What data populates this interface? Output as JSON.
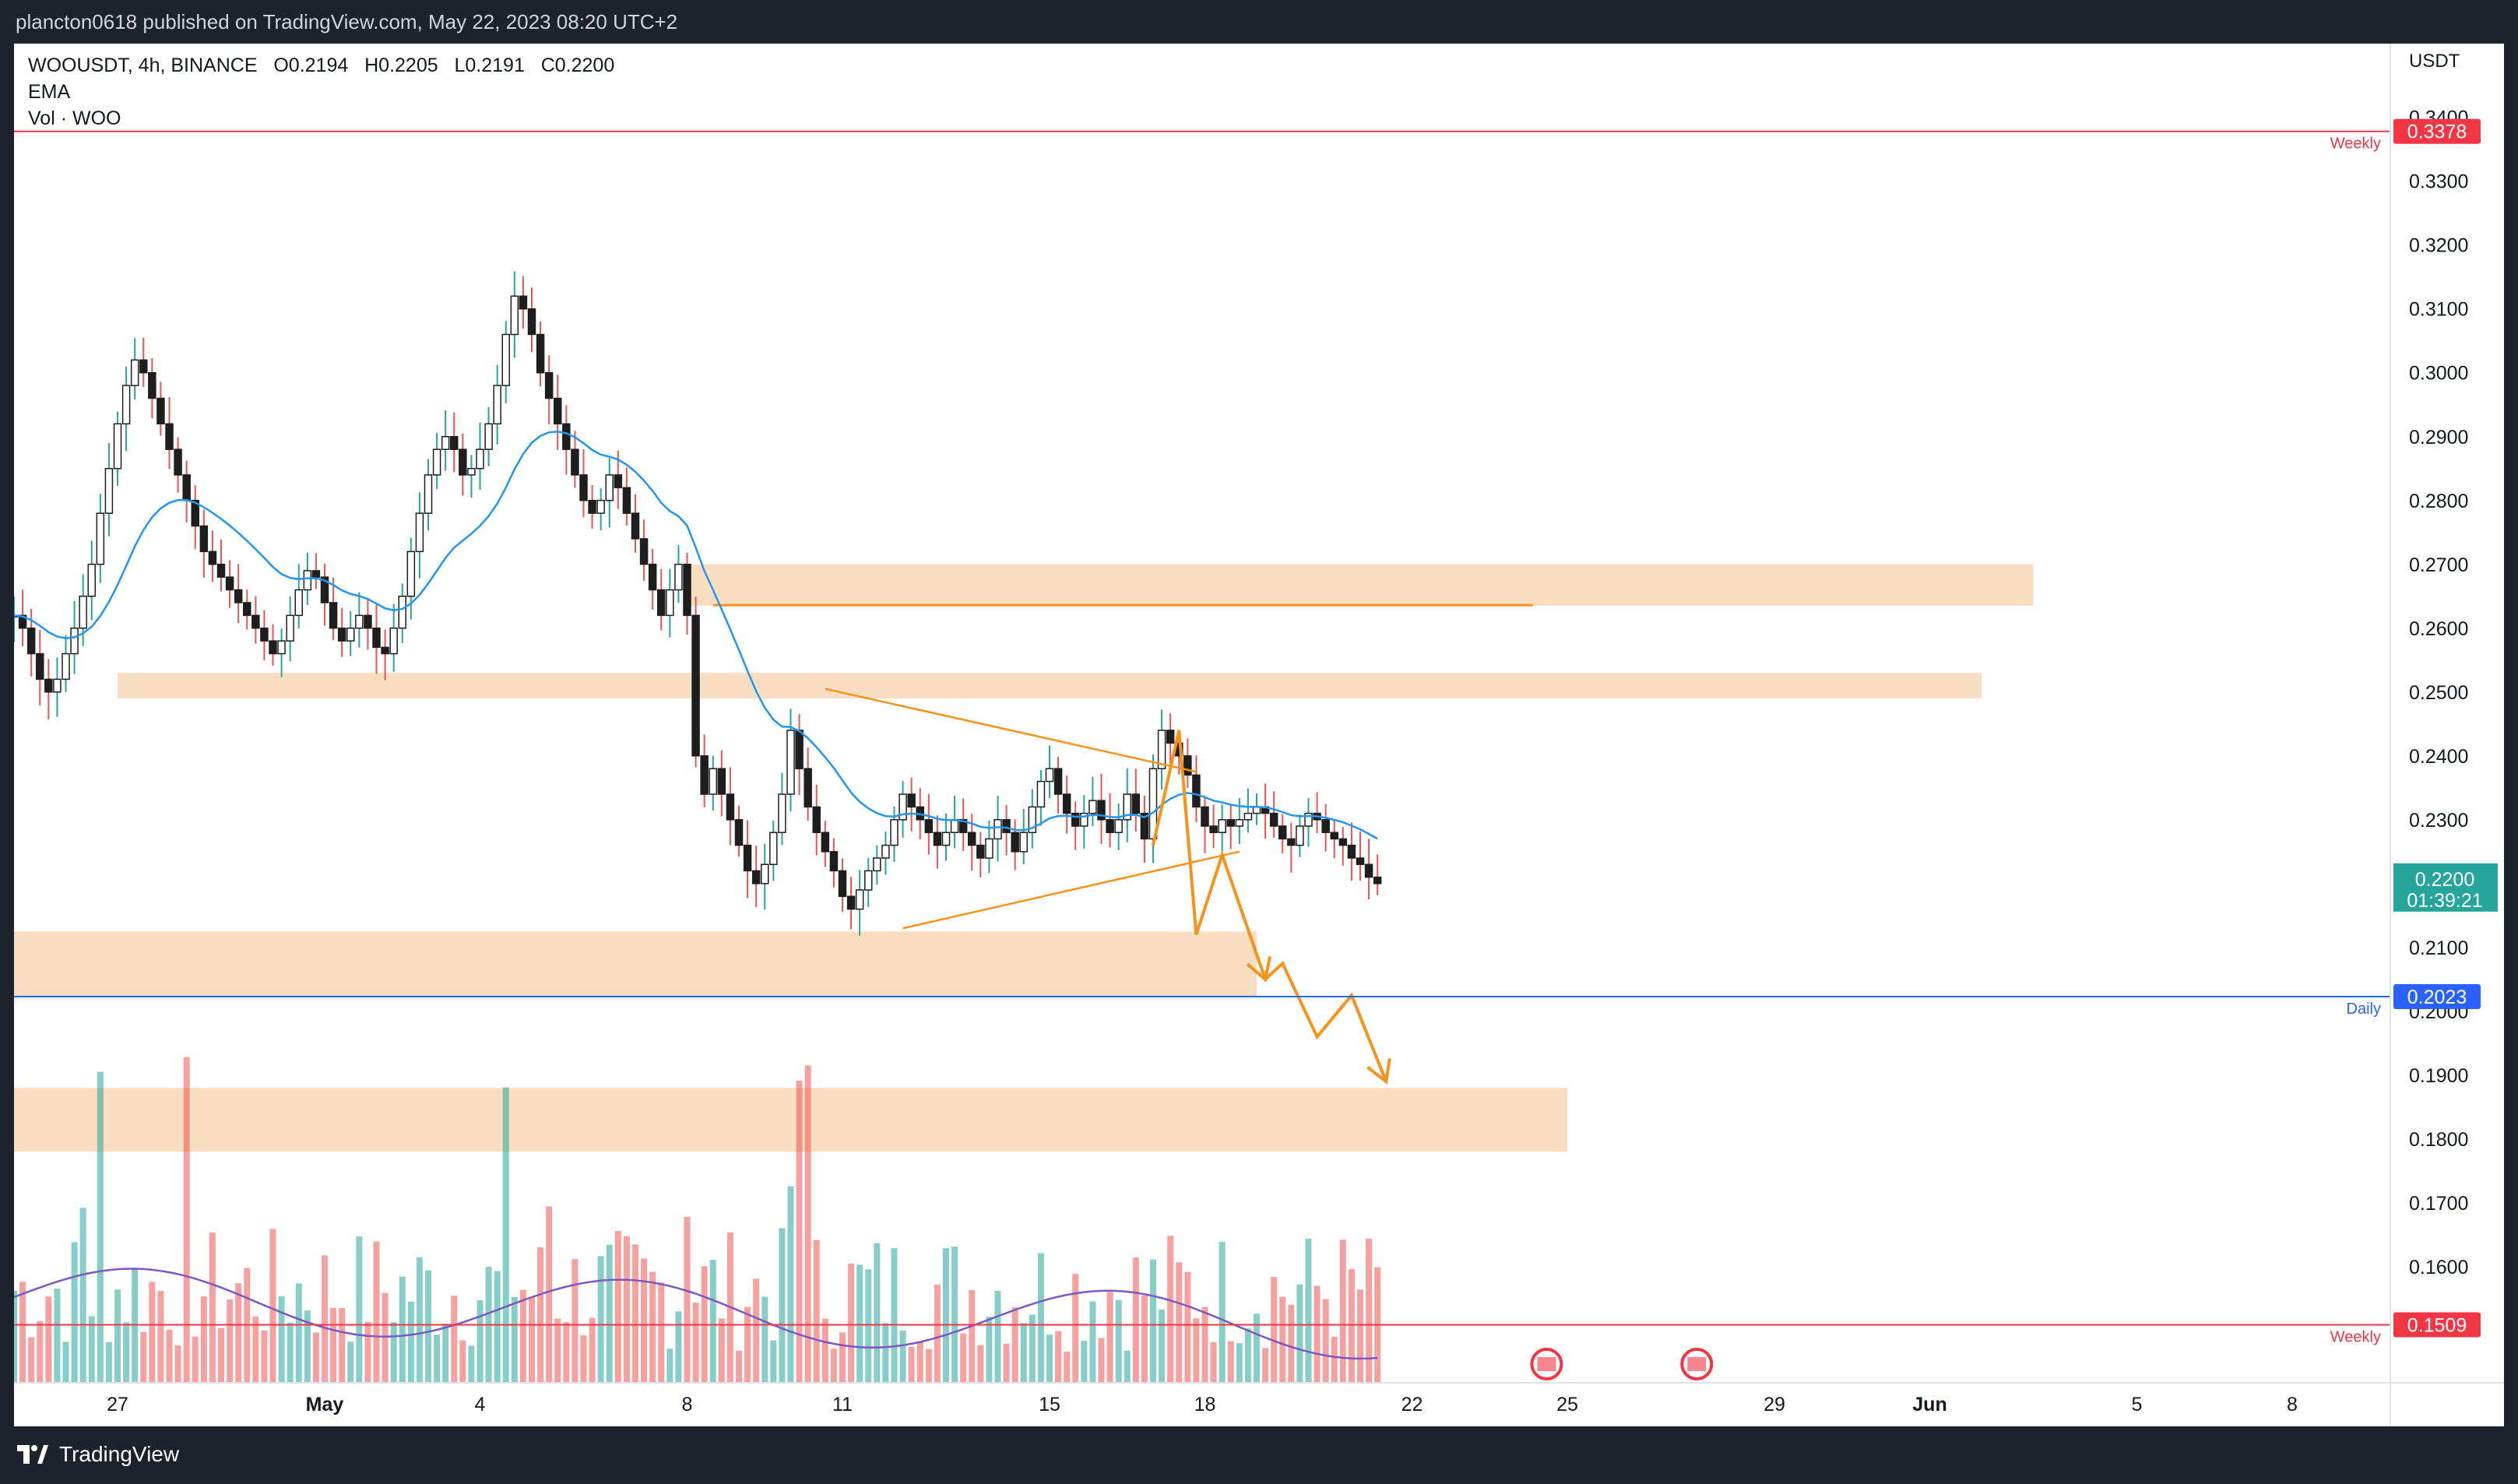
{
  "header": {
    "publish_text": "plancton0618 published on TradingView.com, May 22, 2023 08:20 UTC+2"
  },
  "footer": {
    "brand": "TradingView"
  },
  "legend": {
    "symbol_line": "WOOUSDT, 4h, BINANCE",
    "open": "O0.2194",
    "high": "H0.2205",
    "low": "L0.2191",
    "close": "C0.2200",
    "ema": "EMA",
    "vol": "Vol · WOO"
  },
  "price_axis": {
    "currency": "USDT",
    "ticks": [
      "0.3400",
      "0.3300",
      "0.3200",
      "0.3100",
      "0.3000",
      "0.2900",
      "0.2800",
      "0.2700",
      "0.2600",
      "0.2500",
      "0.2400",
      "0.2300",
      "0.2200",
      "0.2100",
      "0.2000",
      "0.1900",
      "0.1800",
      "0.1700",
      "0.1600"
    ],
    "current_price": "0.2200",
    "countdown": "01:39:21"
  },
  "time_axis": {
    "labels": [
      "27",
      "May",
      "4",
      "8",
      "11",
      "15",
      "18",
      "22",
      "25",
      "29",
      "Jun",
      "5",
      "8"
    ]
  },
  "levels": [
    {
      "price": 0.3378,
      "label": "0.3378",
      "tag": "Weekly",
      "color": "#f23645"
    },
    {
      "price": 0.2023,
      "label": "0.2023",
      "tag": "Daily",
      "color": "#2962ff"
    },
    {
      "price": 0.1509,
      "label": "0.1509",
      "tag": "Weekly",
      "color": "#f23645"
    }
  ],
  "zones": [
    {
      "from": "May 8",
      "to": "Jun 3",
      "top": 0.27,
      "bottom": 0.2635
    },
    {
      "from": "Apr 27",
      "to": "Jun 2",
      "top": 0.253,
      "bottom": 0.249
    },
    {
      "from": "Apr 25",
      "to": "May 19",
      "top": 0.2125,
      "bottom": 0.2023
    },
    {
      "from": "Apr 25",
      "to": "May 25",
      "top": 0.188,
      "bottom": 0.178
    }
  ],
  "colors": {
    "up": "#26a69a",
    "down": "#ef5350",
    "ema": "#2196f3",
    "vol_ma": "#7e57c2",
    "zone": "#f8d7b5",
    "drawing": "#f7931a"
  },
  "chart_data": {
    "type": "candlestick",
    "symbol": "WOOUSDT",
    "timeframe": "4h",
    "exchange": "BINANCE",
    "last_ohlc": {
      "open": 0.2194,
      "high": 0.2205,
      "low": 0.2191,
      "close": 0.22
    },
    "ylim": [
      0.1545,
      0.3435
    ],
    "x_range": [
      "2023-04-25",
      "2023-06-09"
    ],
    "x_ticks": [
      "Apr 27",
      "May 1",
      "May 4",
      "May 8",
      "May 11",
      "May 15",
      "May 18",
      "May 22",
      "May 25",
      "May 29",
      "Jun 1",
      "Jun 5",
      "Jun 8"
    ],
    "approx_closes_4h": [
      0.262,
      0.26,
      0.256,
      0.252,
      0.25,
      0.252,
      0.256,
      0.26,
      0.265,
      0.27,
      0.278,
      0.285,
      0.292,
      0.298,
      0.302,
      0.3,
      0.296,
      0.292,
      0.288,
      0.284,
      0.28,
      0.276,
      0.272,
      0.27,
      0.268,
      0.266,
      0.264,
      0.262,
      0.26,
      0.258,
      0.256,
      0.258,
      0.262,
      0.266,
      0.269,
      0.268,
      0.264,
      0.26,
      0.258,
      0.26,
      0.262,
      0.26,
      0.257,
      0.256,
      0.26,
      0.265,
      0.272,
      0.278,
      0.284,
      0.288,
      0.29,
      0.288,
      0.284,
      0.285,
      0.288,
      0.292,
      0.298,
      0.306,
      0.312,
      0.31,
      0.306,
      0.3,
      0.296,
      0.292,
      0.288,
      0.284,
      0.28,
      0.278,
      0.28,
      0.284,
      0.282,
      0.278,
      0.274,
      0.27,
      0.266,
      0.262,
      0.266,
      0.27,
      0.262,
      0.24,
      0.234,
      0.238,
      0.234,
      0.23,
      0.226,
      0.222,
      0.22,
      0.223,
      0.228,
      0.234,
      0.244,
      0.238,
      0.232,
      0.228,
      0.225,
      0.222,
      0.218,
      0.216,
      0.219,
      0.222,
      0.224,
      0.226,
      0.23,
      0.234,
      0.232,
      0.23,
      0.228,
      0.226,
      0.228,
      0.23,
      0.228,
      0.226,
      0.224,
      0.227,
      0.23,
      0.228,
      0.225,
      0.228,
      0.232,
      0.236,
      0.238,
      0.234,
      0.231,
      0.229,
      0.231,
      0.233,
      0.23,
      0.228,
      0.23,
      0.234,
      0.231,
      0.227,
      0.238,
      0.244,
      0.242,
      0.24,
      0.237,
      0.232,
      0.229,
      0.228,
      0.23,
      0.229,
      0.23,
      0.231,
      0.232,
      0.231,
      0.229,
      0.227,
      0.226,
      0.229,
      0.231,
      0.23,
      0.228,
      0.227,
      0.226,
      0.224,
      0.223,
      0.221,
      0.22
    ],
    "series": [
      {
        "name": "EMA",
        "role": "moving average of close"
      },
      {
        "name": "Vol · WOO",
        "role": "volume histogram with MA"
      }
    ],
    "horizontal_levels": [
      0.3378,
      0.2023,
      0.1509
    ],
    "projection_path": [
      [
        "May 17 00:00",
        0.226
      ],
      [
        "May 17 12:00",
        0.244
      ],
      [
        "May 17 20:00",
        0.212
      ],
      [
        "May 18 08:00",
        0.2245
      ],
      [
        "May 19 04:00",
        0.205
      ],
      [
        "May 19 12:00",
        0.2075
      ],
      [
        "May 20 04:00",
        0.196
      ],
      [
        "May 20 20:00",
        0.2025
      ],
      [
        "May 21 12:00",
        0.189
      ]
    ],
    "triangle": {
      "upper": [
        [
          "May 10 16:00",
          0.2505
        ],
        [
          "May 17 20:00",
          0.2375
        ]
      ],
      "lower": [
        [
          "May 12 04:00",
          0.213
        ],
        [
          "May 18 16:00",
          0.225
        ]
      ]
    },
    "grid": false
  }
}
